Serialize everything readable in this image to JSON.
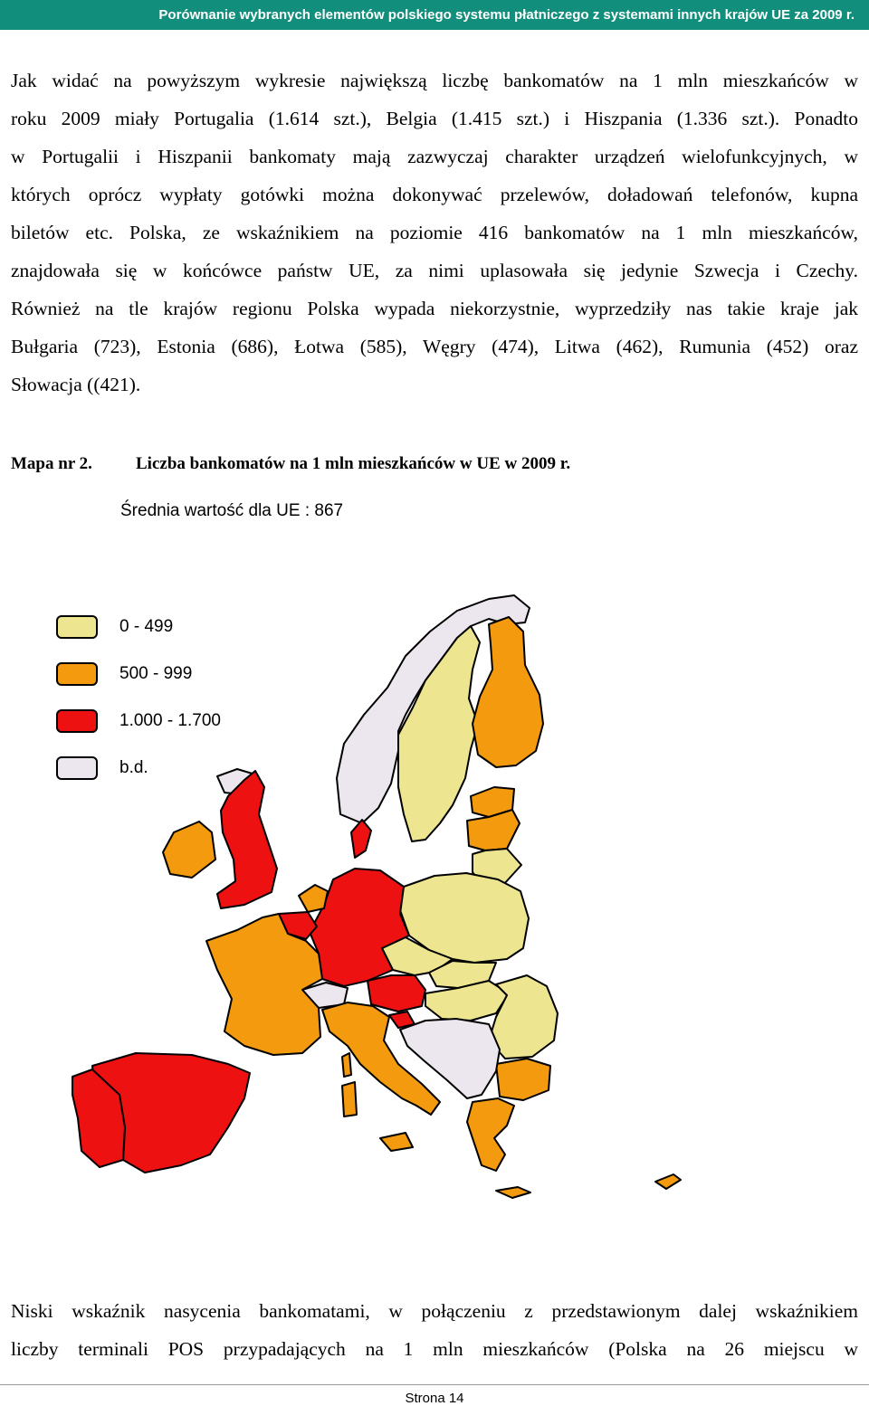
{
  "header": {
    "title": "Porównanie wybranych elementów polskiego systemu płatniczego z systemami innych krajów UE za 2009 r."
  },
  "paragraph1": {
    "lines": [
      "Jak widać na powyższym wykresie największą liczbę bankomatów na 1 mln mieszkańców w",
      "roku 2009 miały Portugalia (1.614 szt.), Belgia (1.415 szt.) i Hiszpania (1.336 szt.). Ponadto",
      "w Portugalii i Hiszpanii bankomaty mają zazwyczaj charakter urządzeń wielofunkcyjnych, w",
      "których oprócz wypłaty gotówki można dokonywać przelewów, doładowań telefonów, kupna",
      "biletów etc. Polska, ze wskaźnikiem na poziomie 416 bankomatów na 1 mln mieszkańców,",
      "znajdowała się w końcówce państw UE, za nimi uplasowała się jedynie Szwecja i Czechy.",
      "Również na tle krajów regionu Polska wypada niekorzystnie, wyprzedziły nas takie kraje jak",
      "Bułgaria (723), Estonia (686), Łotwa (585), Węgry (474), Litwa (462), Rumunia (452) oraz",
      "Słowacja ((421)."
    ]
  },
  "figure": {
    "number": "Mapa nr 2.",
    "title": "Liczba bankomatów na 1 mln mieszkańców w UE w 2009 r.",
    "subtitle": "Średnia wartość dla UE : 867",
    "legend": [
      {
        "label": "0 - 499",
        "color": "#ede58f"
      },
      {
        "label": "500 - 999",
        "color": "#f49a0e"
      },
      {
        "label": "1.000 - 1.700",
        "color": "#ee1111"
      },
      {
        "label": "b.d.",
        "color": "#ece7ee"
      }
    ]
  },
  "paragraph2": {
    "lines": [
      "Niski wskaźnik nasycenia bankomatami, w połączeniu z przedstawionym dalej wskaźnikiem",
      "liczby terminali POS przypadających na 1 mln mieszkańców (Polska na 26 miejscu w"
    ]
  },
  "footer": {
    "page": "Strona 14"
  }
}
